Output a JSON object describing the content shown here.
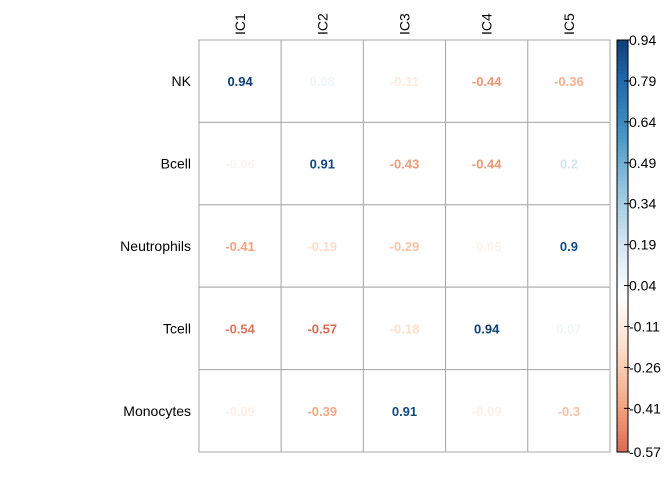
{
  "chart_data": {
    "type": "heatmap",
    "title": "",
    "xlabel": "",
    "ylabel": "",
    "columns": [
      "IC1",
      "IC2",
      "IC3",
      "IC4",
      "IC5"
    ],
    "rows": [
      "NK",
      "Bcell",
      "Neutrophils",
      "Tcell",
      "Monocytes"
    ],
    "values": [
      [
        0.94,
        0.08,
        -0.11,
        -0.44,
        -0.36
      ],
      [
        -0.06,
        0.91,
        -0.43,
        -0.44,
        0.2
      ],
      [
        -0.41,
        -0.19,
        -0.29,
        -0.06,
        0.9
      ],
      [
        -0.54,
        -0.57,
        -0.18,
        0.94,
        0.07
      ],
      [
        -0.09,
        -0.39,
        0.91,
        -0.09,
        -0.3
      ]
    ],
    "value_labels": [
      [
        "0.94",
        "0.08",
        "-0.11",
        "-0.44",
        "-0.36"
      ],
      [
        "-0.06",
        "0.91",
        "-0.43",
        "-0.44",
        "0.2"
      ],
      [
        "-0.41",
        "-0.19",
        "-0.29",
        "-0.06",
        "0.9"
      ],
      [
        "-0.54",
        "-0.57",
        "-0.18",
        "0.94",
        "0.07"
      ],
      [
        "-0.09",
        "-0.39",
        "0.91",
        "-0.09",
        "-0.3"
      ]
    ],
    "colorbar": {
      "min": -0.57,
      "max": 0.94,
      "ticks": [
        "0.94",
        "0.79",
        "0.64",
        "0.49",
        "0.34",
        "0.19",
        "0.04",
        "-0.11",
        "-0.26",
        "-0.41",
        "-0.57"
      ],
      "tick_values": [
        0.94,
        0.79,
        0.64,
        0.49,
        0.34,
        0.19,
        0.04,
        -0.11,
        -0.26,
        -0.41,
        -0.57
      ]
    },
    "colors": {
      "strong_negative": "#b2182b",
      "negative": "#d6604d",
      "weak_negative": "#f4a582",
      "faint_negative": "#fddbc7",
      "neutral": "#ffffff",
      "faint_positive": "#d1e5f0",
      "weak_positive": "#92c5de",
      "positive": "#4393c3",
      "strong_positive": "#2166ac",
      "darkest_positive": "#053061",
      "grid": "#aaaaaa"
    },
    "grid": true,
    "legend": "right"
  }
}
